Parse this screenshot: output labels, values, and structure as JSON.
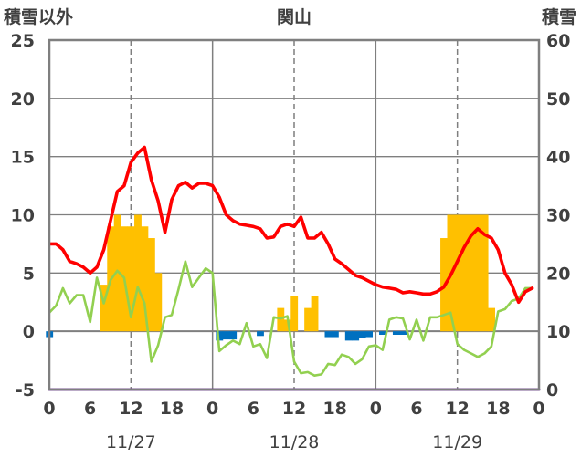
{
  "chart_data": {
    "type": "bar+line",
    "title": "関山",
    "left_axis_label": "積雪以外",
    "right_axis_label": "積雪",
    "left_ylim": [
      -5,
      25
    ],
    "right_ylim": [
      0,
      60
    ],
    "left_yticks": [
      "25",
      "20",
      "15",
      "10",
      "5",
      "0",
      "-5"
    ],
    "right_yticks": [
      "60",
      "50",
      "40",
      "30",
      "20",
      "10",
      "0"
    ],
    "x_range_hours": [
      0,
      72
    ],
    "x_tick_positions": [
      0,
      6,
      12,
      18,
      24,
      30,
      36,
      42,
      48,
      54,
      60,
      66,
      72
    ],
    "x_tick_labels": [
      "0",
      "6",
      "12",
      "18",
      "0",
      "6",
      "12",
      "18",
      "0",
      "6",
      "12",
      "18",
      "0"
    ],
    "date_labels": [
      {
        "hour": 12,
        "text": "11/27"
      },
      {
        "hour": 36,
        "text": "11/28"
      },
      {
        "hour": 60,
        "text": "11/29"
      }
    ],
    "grid": "dashed vertical lines at 12h, solid at day boundaries, solid horizontal lines",
    "colors": {
      "snowfall_bar": "#ffc000",
      "negative_bar": "#0070c0",
      "temperature_line": "#ff0000",
      "wind_line": "#92d050",
      "snow_depth_line": "#7030a0",
      "grid": "#7f7f7f"
    },
    "series": [
      {
        "kind": "bar",
        "color": "#ffc000",
        "x": [
          8,
          9,
          10,
          11,
          12,
          13,
          14,
          15,
          16,
          34,
          35,
          36,
          38,
          39,
          58,
          59,
          60,
          61,
          62,
          63,
          64,
          65
        ],
        "values": [
          4,
          9,
          10,
          9,
          9,
          10,
          9,
          8,
          5,
          2,
          1,
          3,
          2,
          3,
          8,
          10,
          10,
          10,
          10,
          10,
          10,
          2
        ]
      },
      {
        "kind": "bar",
        "color": "#0070c0",
        "x": [
          0,
          25,
          26,
          27,
          31,
          41,
          42,
          44,
          45,
          46,
          47,
          49,
          51,
          52
        ],
        "values": [
          -0.5,
          -0.8,
          -0.7,
          -0.7,
          -0.4,
          -0.5,
          -0.5,
          -0.8,
          -0.8,
          -0.6,
          -0.5,
          -0.3,
          -0.3,
          -0.3
        ]
      },
      {
        "kind": "line",
        "color": "#ff0000",
        "x": [
          0,
          1,
          2,
          3,
          4,
          5,
          6,
          7,
          8,
          9,
          10,
          11,
          12,
          13,
          14,
          15,
          16,
          17,
          18,
          19,
          20,
          21,
          22,
          23,
          24,
          25,
          26,
          27,
          28,
          29,
          30,
          31,
          32,
          33,
          34,
          35,
          36,
          37,
          38,
          39,
          40,
          41,
          42,
          43,
          44,
          45,
          46,
          47,
          48,
          49,
          50,
          51,
          52,
          53,
          54,
          55,
          56,
          57,
          58,
          59,
          60,
          61,
          62,
          63,
          64,
          65,
          66,
          67,
          68,
          69,
          70,
          71
        ],
        "values": [
          7.5,
          7.5,
          7,
          6,
          5.8,
          5.5,
          5,
          5.5,
          7,
          9.5,
          12,
          12.5,
          14.5,
          15.3,
          15.8,
          13,
          11.2,
          8.5,
          11.3,
          12.5,
          12.8,
          12.3,
          12.7,
          12.7,
          12.5,
          11.5,
          10,
          9.5,
          9.2,
          9.1,
          9,
          8.8,
          8,
          8.1,
          9,
          9.2,
          9,
          9.8,
          8,
          8,
          8.5,
          7.5,
          6.2,
          5.8,
          5.3,
          4.8,
          4.6,
          4.3,
          4,
          3.8,
          3.7,
          3.6,
          3.3,
          3.4,
          3.3,
          3.2,
          3.2,
          3.4,
          3.8,
          4.8,
          6,
          7.2,
          8.2,
          8.8,
          8.3,
          8,
          7,
          5,
          4,
          2.5,
          3.4,
          3.7
        ]
      },
      {
        "kind": "line",
        "color": "#92d050",
        "x": [
          0,
          1,
          2,
          3,
          4,
          5,
          6,
          7,
          8,
          9,
          10,
          11,
          12,
          13,
          14,
          15,
          16,
          17,
          18,
          19,
          20,
          21,
          22,
          23,
          24,
          25,
          26,
          27,
          28,
          29,
          30,
          31,
          32,
          33,
          34,
          35,
          36,
          37,
          38,
          39,
          40,
          41,
          42,
          43,
          44,
          45,
          46,
          47,
          48,
          49,
          50,
          51,
          52,
          53,
          54,
          55,
          56,
          57,
          58,
          59,
          60,
          61,
          62,
          63,
          64,
          65,
          66,
          67,
          68,
          69,
          70,
          71
        ],
        "values": [
          1.6,
          2.2,
          3.7,
          2.4,
          3.1,
          3.1,
          0.8,
          4.6,
          2.4,
          4.4,
          5.2,
          4.6,
          1.2,
          3.8,
          2.4,
          -2.6,
          -1.2,
          1.2,
          1.4,
          3.6,
          6,
          3.8,
          4.6,
          5.4,
          5,
          -1.7,
          -1.2,
          -0.8,
          -1.1,
          0.7,
          -1.3,
          -1.1,
          -2.3,
          1.2,
          1.1,
          1.3,
          -2.6,
          -3.6,
          -3.5,
          -3.8,
          -3.7,
          -2.8,
          -2.9,
          -2,
          -2.2,
          -2.8,
          -2.4,
          -1.3,
          -1.2,
          -1.6,
          1,
          1.2,
          1.1,
          -0.7,
          1,
          -0.8,
          1.2,
          1.2,
          1.4,
          1.6,
          -1.1,
          -1.6,
          -1.9,
          -2.2,
          -1.9,
          -1.3,
          1.7,
          1.9,
          2.6,
          2.8,
          3.7,
          3.7
        ]
      },
      {
        "kind": "line",
        "color": "#7030a0",
        "axis": "right",
        "x": [
          0,
          72
        ],
        "values": [
          0,
          0
        ]
      }
    ]
  }
}
